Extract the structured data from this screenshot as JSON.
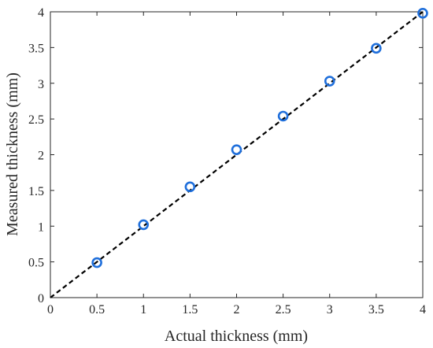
{
  "chart_data": {
    "type": "scatter",
    "xlabel": "Actual thickness (mm)",
    "ylabel": "Measured thickness (mm)",
    "xlim": [
      0,
      4
    ],
    "ylim": [
      0,
      4
    ],
    "xticks": [
      0,
      0.5,
      1,
      1.5,
      2,
      2.5,
      3,
      3.5,
      4
    ],
    "yticks": [
      0,
      0.5,
      1,
      1.5,
      2,
      2.5,
      3,
      3.5,
      4
    ],
    "grid": false,
    "series": [
      {
        "type": "scatter",
        "marker": "open-circle",
        "color": "#1f6fdb",
        "x": [
          0.5,
          1,
          1.5,
          2,
          2.5,
          3,
          3.5,
          4
        ],
        "y": [
          0.49,
          1.02,
          1.55,
          2.07,
          2.54,
          3.03,
          3.49,
          3.98
        ]
      },
      {
        "type": "line",
        "style": "dashed",
        "color": "#000000",
        "x": [
          0,
          4
        ],
        "y": [
          0,
          4
        ]
      }
    ]
  }
}
